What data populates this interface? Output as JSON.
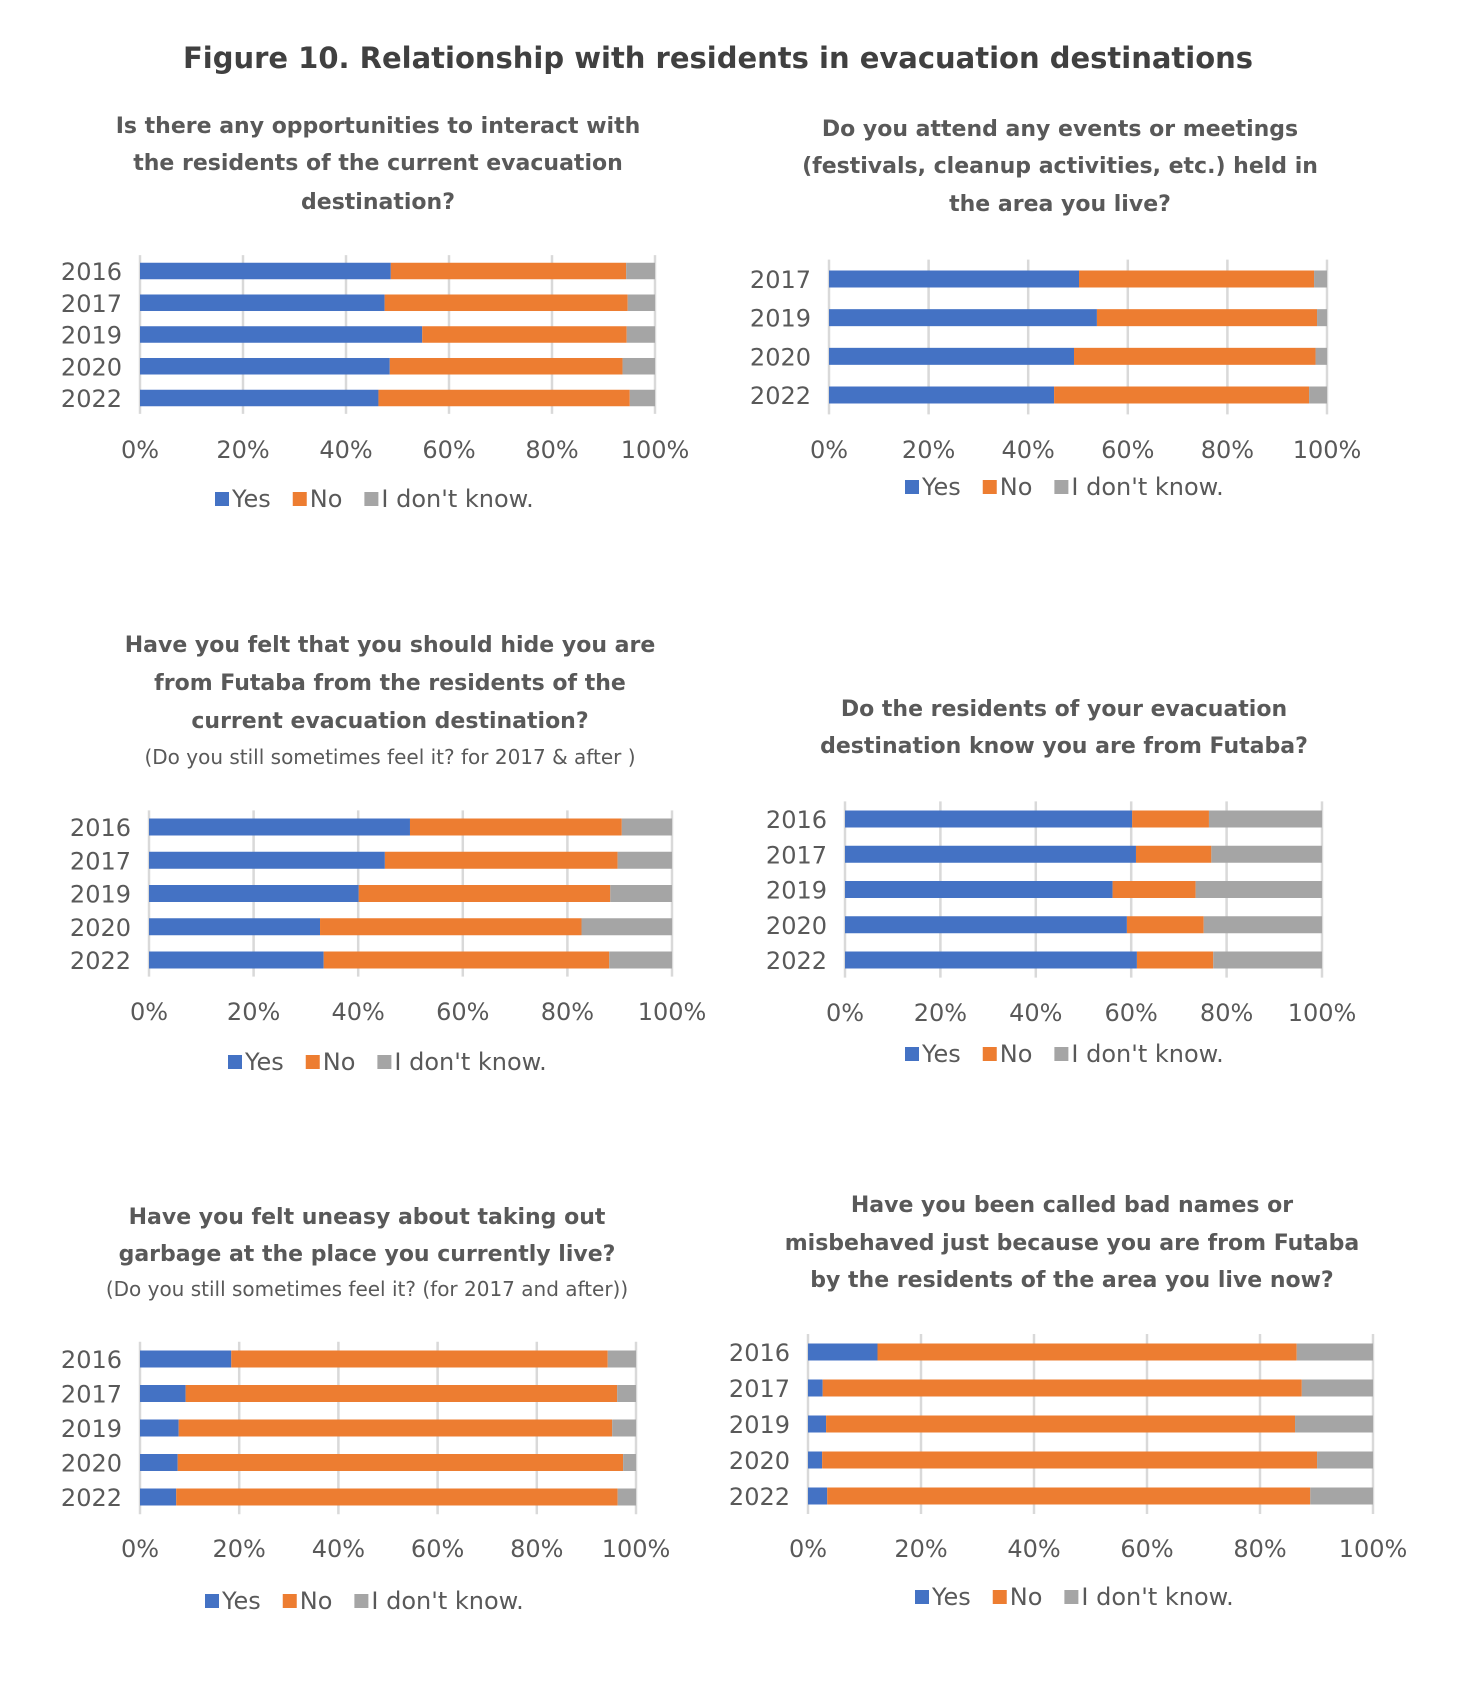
{
  "figure_title": "Figure 10. Relationship with residents in evacuation destinations",
  "colors": {
    "Yes": "#4472C4",
    "No": "#ED7D31",
    "I don't know.": "#A5A5A5",
    "grid": "#D9D9D9"
  },
  "chart_data": [
    {
      "type": "bar",
      "orientation": "horizontal",
      "stacking": "percent",
      "title_lines": [
        "Is there any opportunities to interact with",
        "the residents of the current evacuation",
        "destination?"
      ],
      "note": "",
      "categories": [
        "2016",
        "2017",
        "2019",
        "2020",
        "2022"
      ],
      "xlim": [
        0,
        100
      ],
      "xticks": [
        "0%",
        "20%",
        "40%",
        "60%",
        "80%",
        "100%"
      ],
      "grid": true,
      "legend": "bottom",
      "series": [
        {
          "name": "Yes",
          "values": [
            48.7,
            47.5,
            54.8,
            48.5,
            46.3
          ]
        },
        {
          "name": "No",
          "values": [
            45.7,
            47.2,
            39.7,
            45.2,
            48.8
          ]
        },
        {
          "name": "I don't know.",
          "values": [
            5.6,
            5.3,
            5.5,
            6.3,
            4.9
          ]
        }
      ]
    },
    {
      "type": "bar",
      "orientation": "horizontal",
      "stacking": "percent",
      "title_lines": [
        "Do you attend any events or meetings",
        "(festivals, cleanup activities, etc.) held in",
        "the area you live?"
      ],
      "note": "",
      "categories": [
        "2017",
        "2019",
        "2020",
        "2022"
      ],
      "xlim": [
        0,
        100
      ],
      "xticks": [
        "0%",
        "20%",
        "40%",
        "60%",
        "80%",
        "100%"
      ],
      "grid": true,
      "legend": "bottom",
      "series": [
        {
          "name": "Yes",
          "values": [
            50.2,
            53.8,
            49.2,
            45.2
          ]
        },
        {
          "name": "No",
          "values": [
            47.2,
            44.2,
            48.5,
            51.2
          ]
        },
        {
          "name": "I don't know.",
          "values": [
            2.6,
            2.0,
            2.3,
            3.6
          ]
        }
      ]
    },
    {
      "type": "bar",
      "orientation": "horizontal",
      "stacking": "percent",
      "title_lines": [
        "Have you felt that you should hide you are",
        "from Futaba from the residents of the",
        "current evacuation destination?"
      ],
      "note": "(Do you still sometimes feel it? for 2017 & after )",
      "categories": [
        "2016",
        "2017",
        "2019",
        "2020",
        "2022"
      ],
      "xlim": [
        0,
        100
      ],
      "xticks": [
        "0%",
        "20%",
        "40%",
        "60%",
        "80%",
        "100%"
      ],
      "grid": true,
      "legend": "bottom",
      "series": [
        {
          "name": "Yes",
          "values": [
            49.9,
            45.1,
            40.1,
            32.7,
            33.4
          ]
        },
        {
          "name": "No",
          "values": [
            40.5,
            44.5,
            48.1,
            50.0,
            54.6
          ]
        },
        {
          "name": "I don't know.",
          "values": [
            9.6,
            10.4,
            11.8,
            17.3,
            12.0
          ]
        }
      ]
    },
    {
      "type": "bar",
      "orientation": "horizontal",
      "stacking": "percent",
      "title_lines": [
        "Do the residents of your evacuation",
        "destination know you are from Futaba?"
      ],
      "note": "",
      "categories": [
        "2016",
        "2017",
        "2019",
        "2020",
        "2022"
      ],
      "xlim": [
        0,
        100
      ],
      "xticks": [
        "0%",
        "20%",
        "40%",
        "60%",
        "80%",
        "100%"
      ],
      "grid": true,
      "legend": "bottom",
      "series": [
        {
          "name": "Yes",
          "values": [
            60.2,
            61.0,
            56.1,
            59.1,
            61.2
          ]
        },
        {
          "name": "No",
          "values": [
            16.1,
            15.8,
            17.4,
            16.1,
            16.0
          ]
        },
        {
          "name": "I don't know.",
          "values": [
            23.7,
            23.2,
            26.5,
            24.8,
            22.8
          ]
        }
      ]
    },
    {
      "type": "bar",
      "orientation": "horizontal",
      "stacking": "percent",
      "title_lines": [
        "Have you felt uneasy about taking out",
        "garbage at the place you currently live?"
      ],
      "note": "(Do you still sometimes feel it? (for 2017 and after))",
      "categories": [
        "2016",
        "2017",
        "2019",
        "2020",
        "2022"
      ],
      "xlim": [
        0,
        100
      ],
      "xticks": [
        "0%",
        "20%",
        "40%",
        "60%",
        "80%",
        "100%"
      ],
      "grid": true,
      "legend": "bottom",
      "series": [
        {
          "name": "Yes",
          "values": [
            18.4,
            9.2,
            7.8,
            7.6,
            7.3
          ]
        },
        {
          "name": "No",
          "values": [
            75.9,
            87.0,
            87.4,
            89.8,
            89.0
          ]
        },
        {
          "name": "I don't know.",
          "values": [
            5.7,
            3.8,
            4.8,
            2.6,
            3.7
          ]
        }
      ]
    },
    {
      "type": "bar",
      "orientation": "horizontal",
      "stacking": "percent",
      "title_lines": [
        "Have you been called bad names or",
        "misbehaved  just because you are from Futaba",
        "by the residents of the area you live now?"
      ],
      "note": "",
      "categories": [
        "2016",
        "2017",
        "2019",
        "2020",
        "2022"
      ],
      "xlim": [
        0,
        100
      ],
      "xticks": [
        "0%",
        "20%",
        "40%",
        "60%",
        "80%",
        "100%"
      ],
      "grid": true,
      "legend": "bottom",
      "series": [
        {
          "name": "Yes",
          "values": [
            12.3,
            2.6,
            3.2,
            2.5,
            3.4
          ]
        },
        {
          "name": "No",
          "values": [
            74.2,
            84.8,
            83.0,
            87.6,
            85.5
          ]
        },
        {
          "name": "I don't know.",
          "values": [
            13.5,
            12.6,
            13.8,
            9.9,
            11.1
          ]
        }
      ]
    }
  ]
}
